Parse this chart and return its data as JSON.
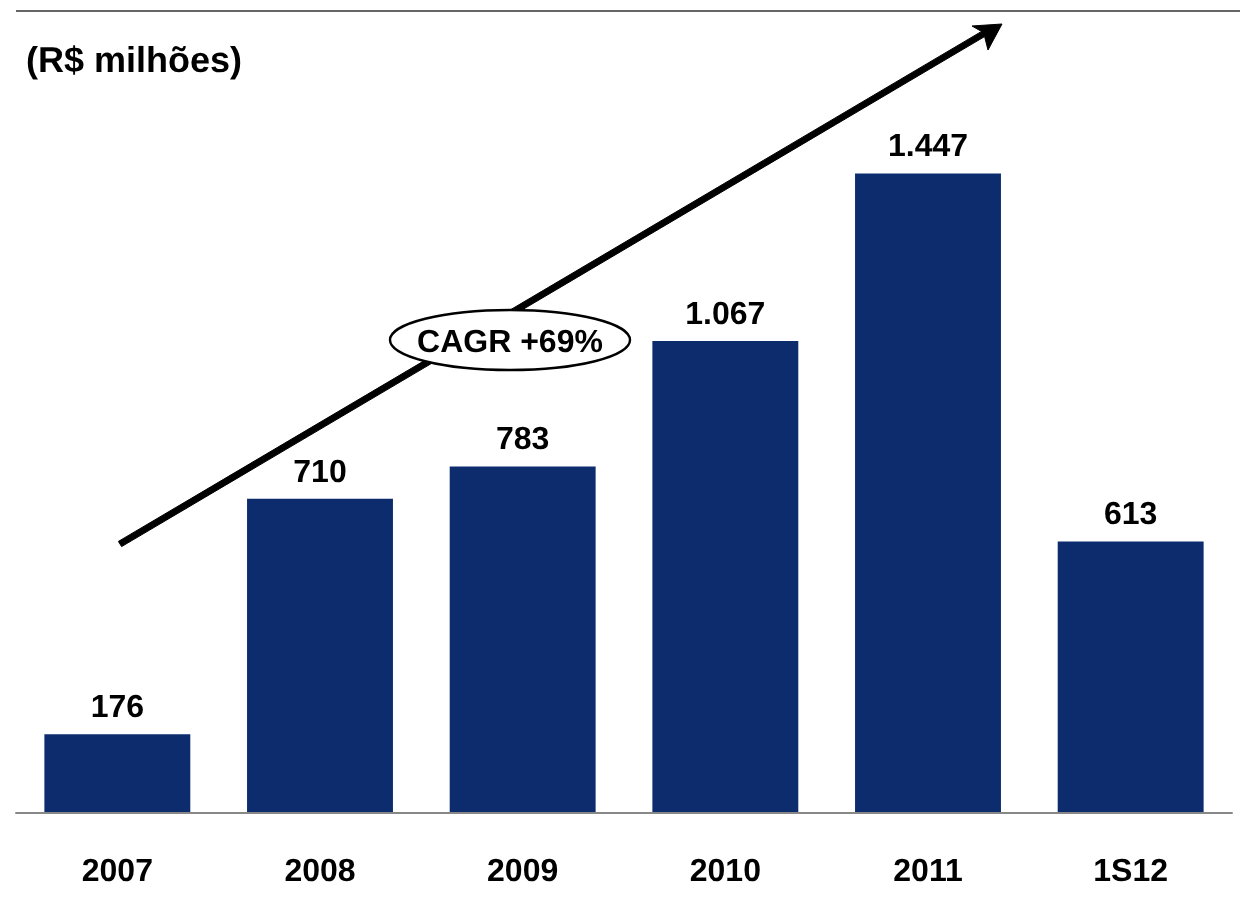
{
  "chart_data": {
    "type": "bar",
    "ylabel": "(R$ milhões)",
    "categories": [
      "2007",
      "2008",
      "2009",
      "2010",
      "2011",
      "1S12"
    ],
    "values": [
      176,
      710,
      783,
      1067,
      1447,
      613
    ],
    "value_labels": [
      "176",
      "710",
      "783",
      "1.067",
      "1.447",
      "613"
    ],
    "color": "#0c2c6e",
    "annotations": [
      "CAGR +69%"
    ]
  }
}
